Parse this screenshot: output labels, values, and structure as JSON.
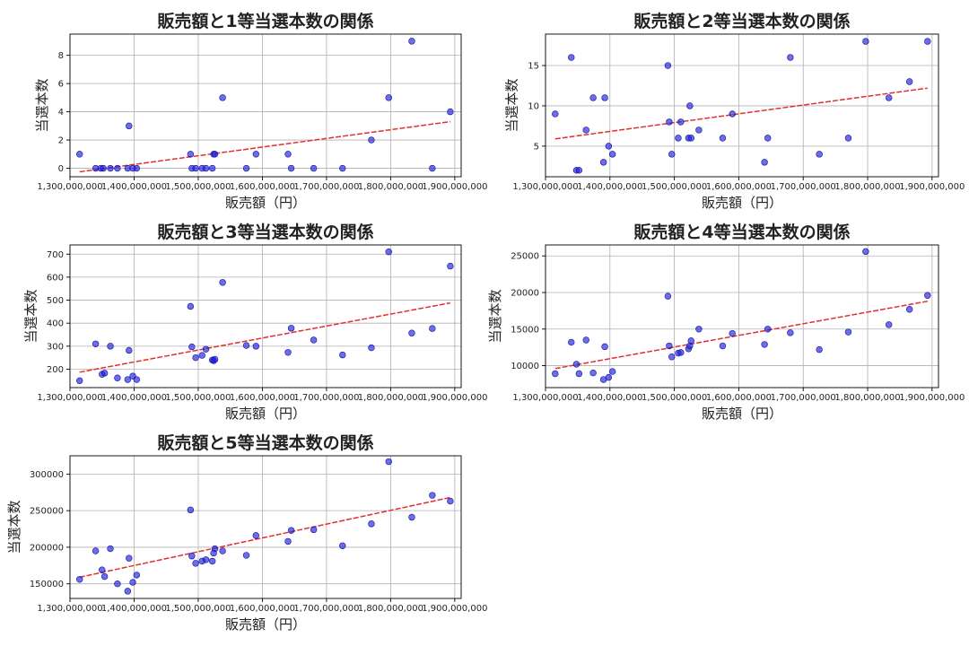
{
  "figure": {
    "background": "#ffffff",
    "point_color": "#1f1fdf",
    "trend_color": "#e03030"
  },
  "chart_data": [
    {
      "type": "scatter",
      "title": "販売額と1等当選本数の関係",
      "xlabel": "販売額（円）",
      "ylabel": "当選本数",
      "xlim": [
        1300000000,
        1910000000
      ],
      "ylim": [
        -0.6,
        9.5
      ],
      "xticks": [
        1300000000,
        1400000000,
        1500000000,
        1600000000,
        1700000000,
        1800000000,
        1900000000
      ],
      "xtick_labels": [
        "1,300,000,000",
        "1,400,000,000",
        "1,500,000,000",
        "1,600,000,000",
        "1,700,000,000",
        "1,800,000,000",
        "1,900,000,000"
      ],
      "yticks": [
        0,
        2,
        4,
        6,
        8
      ],
      "ytick_labels": [
        "0",
        "2",
        "4",
        "6",
        "8"
      ],
      "grid": true,
      "points": [
        {
          "x": 1315000000,
          "y": 1
        },
        {
          "x": 1340000000,
          "y": 0
        },
        {
          "x": 1348000000,
          "y": 0
        },
        {
          "x": 1352000000,
          "y": 0
        },
        {
          "x": 1363000000,
          "y": 0
        },
        {
          "x": 1374000000,
          "y": 0
        },
        {
          "x": 1390000000,
          "y": 0
        },
        {
          "x": 1392000000,
          "y": 3
        },
        {
          "x": 1398000000,
          "y": 0
        },
        {
          "x": 1404000000,
          "y": 0
        },
        {
          "x": 1488000000,
          "y": 1
        },
        {
          "x": 1490000000,
          "y": 0
        },
        {
          "x": 1496000000,
          "y": 0
        },
        {
          "x": 1506000000,
          "y": 0
        },
        {
          "x": 1512000000,
          "y": 0
        },
        {
          "x": 1522000000,
          "y": 0
        },
        {
          "x": 1524000000,
          "y": 1
        },
        {
          "x": 1526000000,
          "y": 1
        },
        {
          "x": 1538000000,
          "y": 5
        },
        {
          "x": 1575000000,
          "y": 0
        },
        {
          "x": 1590000000,
          "y": 1
        },
        {
          "x": 1640000000,
          "y": 1
        },
        {
          "x": 1645000000,
          "y": 0
        },
        {
          "x": 1680000000,
          "y": 0
        },
        {
          "x": 1725000000,
          "y": 0
        },
        {
          "x": 1770000000,
          "y": 2
        },
        {
          "x": 1797000000,
          "y": 5
        },
        {
          "x": 1833000000,
          "y": 9
        },
        {
          "x": 1865000000,
          "y": 0
        },
        {
          "x": 1893000000,
          "y": 4
        }
      ],
      "trendline": [
        {
          "x": 1315000000,
          "y": -0.25
        },
        {
          "x": 1893000000,
          "y": 3.3
        }
      ]
    },
    {
      "type": "scatter",
      "title": "販売額と2等当選本数の関係",
      "xlabel": "販売額（円）",
      "ylabel": "当選本数",
      "xlim": [
        1300000000,
        1910000000
      ],
      "ylim": [
        1.2,
        18.9
      ],
      "xticks": [
        1300000000,
        1400000000,
        1500000000,
        1600000000,
        1700000000,
        1800000000,
        1900000000
      ],
      "xtick_labels": [
        "1,300,000,000",
        "1,400,000,000",
        "1,500,000,000",
        "1,600,000,000",
        "1,700,000,000",
        "1,800,000,000",
        "1,900,000,000"
      ],
      "yticks": [
        5,
        10,
        15
      ],
      "ytick_labels": [
        "5",
        "10",
        "15"
      ],
      "grid": true,
      "points": [
        {
          "x": 1315000000,
          "y": 9
        },
        {
          "x": 1340000000,
          "y": 16
        },
        {
          "x": 1348000000,
          "y": 2
        },
        {
          "x": 1352000000,
          "y": 2
        },
        {
          "x": 1363000000,
          "y": 7
        },
        {
          "x": 1374000000,
          "y": 11
        },
        {
          "x": 1390000000,
          "y": 3
        },
        {
          "x": 1392000000,
          "y": 11
        },
        {
          "x": 1398000000,
          "y": 5
        },
        {
          "x": 1404000000,
          "y": 4
        },
        {
          "x": 1490000000,
          "y": 15
        },
        {
          "x": 1492000000,
          "y": 8
        },
        {
          "x": 1496000000,
          "y": 4
        },
        {
          "x": 1506000000,
          "y": 6
        },
        {
          "x": 1510000000,
          "y": 8
        },
        {
          "x": 1522000000,
          "y": 6
        },
        {
          "x": 1524000000,
          "y": 10
        },
        {
          "x": 1526000000,
          "y": 6
        },
        {
          "x": 1538000000,
          "y": 7
        },
        {
          "x": 1575000000,
          "y": 6
        },
        {
          "x": 1590000000,
          "y": 9
        },
        {
          "x": 1640000000,
          "y": 3
        },
        {
          "x": 1645000000,
          "y": 6
        },
        {
          "x": 1680000000,
          "y": 16
        },
        {
          "x": 1725000000,
          "y": 4
        },
        {
          "x": 1770000000,
          "y": 6
        },
        {
          "x": 1797000000,
          "y": 18
        },
        {
          "x": 1833000000,
          "y": 11
        },
        {
          "x": 1865000000,
          "y": 13
        },
        {
          "x": 1893000000,
          "y": 18
        }
      ],
      "trendline": [
        {
          "x": 1315000000,
          "y": 5.9
        },
        {
          "x": 1893000000,
          "y": 12.2
        }
      ]
    },
    {
      "type": "scatter",
      "title": "販売額と3等当選本数の関係",
      "xlabel": "販売額（円）",
      "ylabel": "当選本数",
      "xlim": [
        1300000000,
        1910000000
      ],
      "ylim": [
        120,
        740
      ],
      "xticks": [
        1300000000,
        1400000000,
        1500000000,
        1600000000,
        1700000000,
        1800000000,
        1900000000
      ],
      "xtick_labels": [
        "1,300,000,000",
        "1,400,000,000",
        "1,500,000,000",
        "1,600,000,000",
        "1,700,000,000",
        "1,800,000,000",
        "1,900,000,000"
      ],
      "yticks": [
        200,
        300,
        400,
        500,
        600,
        700
      ],
      "ytick_labels": [
        "200",
        "300",
        "400",
        "500",
        "600",
        "700"
      ],
      "grid": true,
      "points": [
        {
          "x": 1315000000,
          "y": 150
        },
        {
          "x": 1340000000,
          "y": 310
        },
        {
          "x": 1350000000,
          "y": 178
        },
        {
          "x": 1354000000,
          "y": 183
        },
        {
          "x": 1363000000,
          "y": 300
        },
        {
          "x": 1374000000,
          "y": 162
        },
        {
          "x": 1390000000,
          "y": 155
        },
        {
          "x": 1392000000,
          "y": 282
        },
        {
          "x": 1398000000,
          "y": 170
        },
        {
          "x": 1404000000,
          "y": 155
        },
        {
          "x": 1488000000,
          "y": 473
        },
        {
          "x": 1490000000,
          "y": 297
        },
        {
          "x": 1496000000,
          "y": 250
        },
        {
          "x": 1506000000,
          "y": 260
        },
        {
          "x": 1512000000,
          "y": 287
        },
        {
          "x": 1522000000,
          "y": 240
        },
        {
          "x": 1524000000,
          "y": 237
        },
        {
          "x": 1526000000,
          "y": 243
        },
        {
          "x": 1538000000,
          "y": 577
        },
        {
          "x": 1575000000,
          "y": 303
        },
        {
          "x": 1590000000,
          "y": 300
        },
        {
          "x": 1640000000,
          "y": 273
        },
        {
          "x": 1645000000,
          "y": 378
        },
        {
          "x": 1680000000,
          "y": 327
        },
        {
          "x": 1725000000,
          "y": 262
        },
        {
          "x": 1770000000,
          "y": 293
        },
        {
          "x": 1797000000,
          "y": 710
        },
        {
          "x": 1833000000,
          "y": 357
        },
        {
          "x": 1865000000,
          "y": 377
        },
        {
          "x": 1893000000,
          "y": 648
        }
      ],
      "trendline": [
        {
          "x": 1315000000,
          "y": 187
        },
        {
          "x": 1893000000,
          "y": 488
        }
      ]
    },
    {
      "type": "scatter",
      "title": "販売額と4等当選本数の関係",
      "xlabel": "販売額（円）",
      "ylabel": "当選本数",
      "xlim": [
        1300000000,
        1910000000
      ],
      "ylim": [
        7000,
        26500
      ],
      "xticks": [
        1300000000,
        1400000000,
        1500000000,
        1600000000,
        1700000000,
        1800000000,
        1900000000
      ],
      "xtick_labels": [
        "1,300,000,000",
        "1,400,000,000",
        "1,500,000,000",
        "1,600,000,000",
        "1,700,000,000",
        "1,800,000,000",
        "1,900,000,000"
      ],
      "yticks": [
        10000,
        15000,
        20000,
        25000
      ],
      "ytick_labels": [
        "10000",
        "15000",
        "20000",
        "25000"
      ],
      "grid": true,
      "points": [
        {
          "x": 1315000000,
          "y": 8900
        },
        {
          "x": 1340000000,
          "y": 13200
        },
        {
          "x": 1348000000,
          "y": 10200
        },
        {
          "x": 1352000000,
          "y": 8900
        },
        {
          "x": 1363000000,
          "y": 13500
        },
        {
          "x": 1374000000,
          "y": 9000
        },
        {
          "x": 1390000000,
          "y": 8100
        },
        {
          "x": 1392000000,
          "y": 12600
        },
        {
          "x": 1398000000,
          "y": 8400
        },
        {
          "x": 1404000000,
          "y": 9200
        },
        {
          "x": 1490000000,
          "y": 19500
        },
        {
          "x": 1492000000,
          "y": 12700
        },
        {
          "x": 1496000000,
          "y": 11200
        },
        {
          "x": 1506000000,
          "y": 11700
        },
        {
          "x": 1510000000,
          "y": 11800
        },
        {
          "x": 1522000000,
          "y": 12300
        },
        {
          "x": 1524000000,
          "y": 12700
        },
        {
          "x": 1526000000,
          "y": 13400
        },
        {
          "x": 1538000000,
          "y": 15000
        },
        {
          "x": 1575000000,
          "y": 12700
        },
        {
          "x": 1590000000,
          "y": 14400
        },
        {
          "x": 1640000000,
          "y": 12900
        },
        {
          "x": 1645000000,
          "y": 15000
        },
        {
          "x": 1680000000,
          "y": 14500
        },
        {
          "x": 1725000000,
          "y": 12200
        },
        {
          "x": 1770000000,
          "y": 14600
        },
        {
          "x": 1797000000,
          "y": 25600
        },
        {
          "x": 1833000000,
          "y": 15600
        },
        {
          "x": 1865000000,
          "y": 17700
        },
        {
          "x": 1893000000,
          "y": 19600
        }
      ],
      "trendline": [
        {
          "x": 1315000000,
          "y": 9600
        },
        {
          "x": 1893000000,
          "y": 18800
        }
      ]
    },
    {
      "type": "scatter",
      "title": "販売額と5等当選本数の関係",
      "xlabel": "販売額（円）",
      "ylabel": "当選本数",
      "xlim": [
        1300000000,
        1910000000
      ],
      "ylim": [
        130000,
        325000
      ],
      "xticks": [
        1300000000,
        1400000000,
        1500000000,
        1600000000,
        1700000000,
        1800000000,
        1900000000
      ],
      "xtick_labels": [
        "1,300,000,000",
        "1,400,000,000",
        "1,500,000,000",
        "1,600,000,000",
        "1,700,000,000",
        "1,800,000,000",
        "1,900,000,000"
      ],
      "yticks": [
        150000,
        200000,
        250000,
        300000
      ],
      "ytick_labels": [
        "150000",
        "200000",
        "250000",
        "300000"
      ],
      "grid": true,
      "points": [
        {
          "x": 1315000000,
          "y": 156000
        },
        {
          "x": 1340000000,
          "y": 195000
        },
        {
          "x": 1350000000,
          "y": 169000
        },
        {
          "x": 1354000000,
          "y": 160000
        },
        {
          "x": 1363000000,
          "y": 198000
        },
        {
          "x": 1374000000,
          "y": 150000
        },
        {
          "x": 1390000000,
          "y": 140000
        },
        {
          "x": 1392000000,
          "y": 185000
        },
        {
          "x": 1398000000,
          "y": 152000
        },
        {
          "x": 1404000000,
          "y": 162000
        },
        {
          "x": 1488000000,
          "y": 251000
        },
        {
          "x": 1490000000,
          "y": 188000
        },
        {
          "x": 1496000000,
          "y": 178000
        },
        {
          "x": 1506000000,
          "y": 181000
        },
        {
          "x": 1512000000,
          "y": 183000
        },
        {
          "x": 1522000000,
          "y": 181000
        },
        {
          "x": 1524000000,
          "y": 192000
        },
        {
          "x": 1526000000,
          "y": 198000
        },
        {
          "x": 1538000000,
          "y": 195000
        },
        {
          "x": 1575000000,
          "y": 189000
        },
        {
          "x": 1590000000,
          "y": 216000
        },
        {
          "x": 1640000000,
          "y": 208000
        },
        {
          "x": 1645000000,
          "y": 223000
        },
        {
          "x": 1680000000,
          "y": 224000
        },
        {
          "x": 1725000000,
          "y": 202000
        },
        {
          "x": 1770000000,
          "y": 232000
        },
        {
          "x": 1797000000,
          "y": 317000
        },
        {
          "x": 1833000000,
          "y": 241000
        },
        {
          "x": 1865000000,
          "y": 271000
        },
        {
          "x": 1893000000,
          "y": 263000
        }
      ],
      "trendline": [
        {
          "x": 1315000000,
          "y": 159000
        },
        {
          "x": 1893000000,
          "y": 268000
        }
      ]
    }
  ]
}
